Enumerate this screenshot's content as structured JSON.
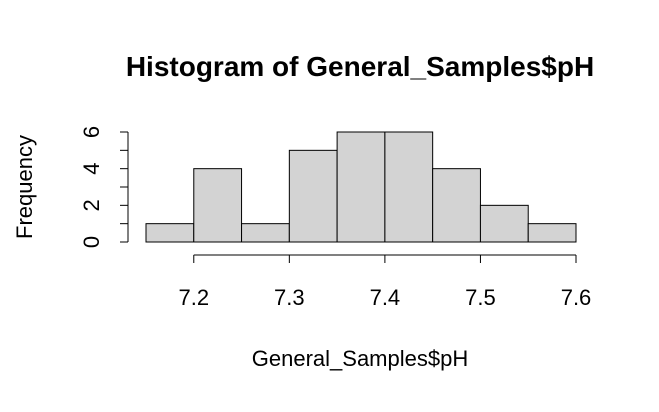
{
  "chart_data": {
    "type": "bar",
    "title": "Histogram of General_Samples$pH",
    "xlabel": "General_Samples$pH",
    "ylabel": "Frequency",
    "bins": [
      {
        "from": 7.15,
        "to": 7.2,
        "count": 1
      },
      {
        "from": 7.2,
        "to": 7.25,
        "count": 4
      },
      {
        "from": 7.25,
        "to": 7.3,
        "count": 1
      },
      {
        "from": 7.3,
        "to": 7.35,
        "count": 5
      },
      {
        "from": 7.35,
        "to": 7.4,
        "count": 6
      },
      {
        "from": 7.4,
        "to": 7.45,
        "count": 6
      },
      {
        "from": 7.45,
        "to": 7.5,
        "count": 4
      },
      {
        "from": 7.5,
        "to": 7.55,
        "count": 2
      },
      {
        "from": 7.55,
        "to": 7.6,
        "count": 1
      }
    ],
    "x_ticks": [
      "7.2",
      "7.3",
      "7.4",
      "7.5",
      "7.6"
    ],
    "y_ticks": [
      "0",
      "2",
      "4",
      "6"
    ],
    "y_minor_ticks": [
      1,
      3,
      5
    ],
    "xlim": [
      7.15,
      7.6
    ],
    "ylim": [
      0,
      6
    ],
    "grid": false,
    "bar_fill": "#d3d3d3",
    "bar_stroke": "#000000"
  }
}
